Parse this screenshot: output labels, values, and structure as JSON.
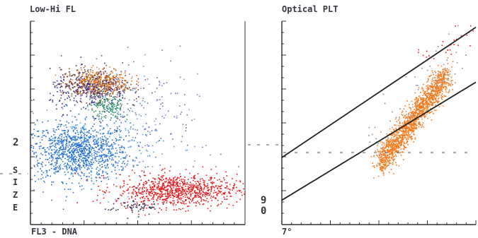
{
  "chart_data": [
    {
      "type": "scatter",
      "title": "Low-Hi FL",
      "xlabel": "FL3 - DNA",
      "ylabel_letters": [
        "S",
        "I",
        "Z",
        "E"
      ],
      "side_mark": "2",
      "grid": false,
      "ylim": [
        0,
        100
      ],
      "xlim": [
        0,
        100
      ],
      "series": [
        {
          "color": "#1f6fd6",
          "points": 1100,
          "center": [
            22,
            36
          ],
          "spread": [
            12,
            7
          ]
        },
        {
          "color": "#e8151a",
          "points": 900,
          "center": [
            68,
            17
          ],
          "spread": [
            14,
            4
          ]
        },
        {
          "color": "#8a4a1e",
          "points": 380,
          "center": [
            30,
            69
          ],
          "spread": [
            8,
            4
          ]
        },
        {
          "color": "#e8761a",
          "points": 250,
          "center": [
            32,
            71
          ],
          "spread": [
            7,
            3
          ]
        },
        {
          "color": "#3b2a8a",
          "points": 260,
          "center": [
            27,
            66
          ],
          "spread": [
            9,
            5
          ]
        },
        {
          "color": "#1a8a5a",
          "points": 140,
          "center": [
            36,
            58
          ],
          "spread": [
            5,
            3
          ]
        },
        {
          "color": "#5aa0e6",
          "points": 200,
          "center": [
            40,
            45
          ],
          "spread": [
            16,
            14
          ]
        },
        {
          "color": "#7a6ab0",
          "points": 120,
          "center": [
            55,
            55
          ],
          "spread": [
            14,
            14
          ]
        },
        {
          "color": "#2a2a4a",
          "points": 60,
          "center": [
            48,
            9
          ],
          "spread": [
            7,
            2
          ]
        }
      ]
    },
    {
      "type": "scatter",
      "title": "Optical PLT",
      "xlabel": "7°",
      "side_mark_top": "9",
      "side_mark_bottom": "0",
      "grid": false,
      "ylim": [
        0,
        100
      ],
      "xlim": [
        0,
        100
      ],
      "boundary_lines": [
        {
          "x": [
            0,
            100
          ],
          "y": [
            33,
            97
          ]
        },
        {
          "x": [
            0,
            100
          ],
          "y": [
            12,
            70
          ]
        }
      ],
      "series": [
        {
          "color": "#f47a1c",
          "points": 1600,
          "along": [
            50,
            85
          ],
          "band": [
            30,
            74
          ],
          "spread": 6
        },
        {
          "color": "#888899",
          "points": 60,
          "along": [
            45,
            95
          ],
          "band": [
            38,
            86
          ],
          "spread": 12
        },
        {
          "color": "#e8151a",
          "points": 25,
          "along": [
            70,
            98
          ],
          "band": [
            82,
            95
          ],
          "spread": 6
        }
      ]
    }
  ]
}
